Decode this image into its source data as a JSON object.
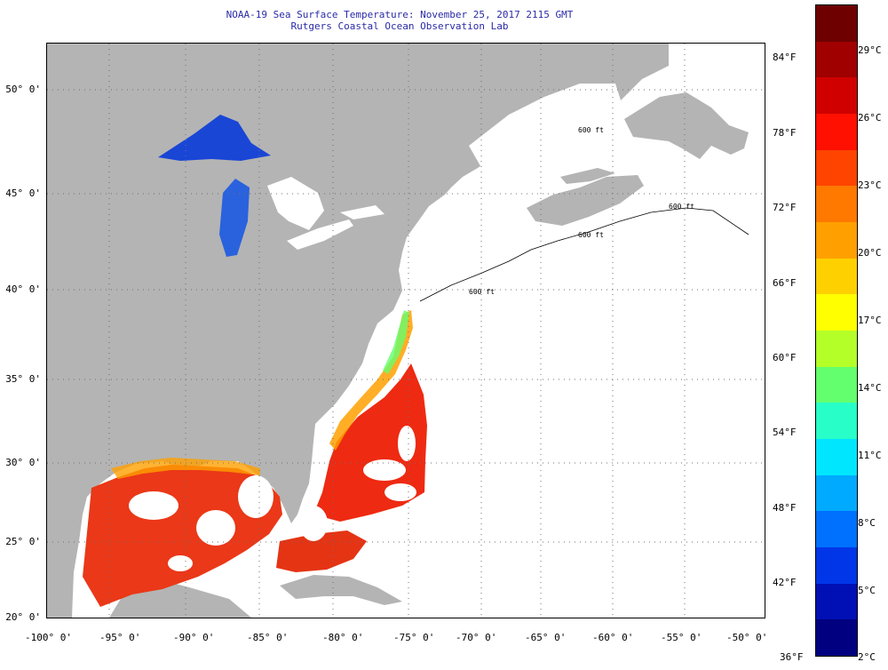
{
  "title": {
    "line1": "NOAA-19 Sea Surface Temperature:  November 25, 2017 2115 GMT",
    "line2": "Rutgers Coastal Ocean Observation Lab"
  },
  "map": {
    "lat_labels": [
      "50° 0'",
      "45° 0'",
      "40° 0'",
      "35° 0'",
      "30° 0'",
      "25° 0'",
      "20° 0'"
    ],
    "lon_labels": [
      "-100° 0'",
      "-95° 0'",
      "-90° 0'",
      "-85° 0'",
      "-80° 0'",
      "-75° 0'",
      "-70° 0'",
      "-65° 0'",
      "-60° 0'",
      "-55° 0'",
      "-50° 0'"
    ],
    "depth_contour_labels": [
      "600 ft",
      "600 ft",
      "600 ft",
      "600 ft"
    ],
    "grid": "dotted",
    "colors": {
      "land": "#b4b4b4",
      "no_data": "#ffffff",
      "warm": "#ee2a12",
      "cold": "#1a46d6"
    }
  },
  "colorbar": {
    "fahrenheit": [
      "84°F",
      "78°F",
      "72°F",
      "66°F",
      "60°F",
      "54°F",
      "48°F",
      "42°F",
      "36°F"
    ],
    "celsius": [
      "29°C",
      "26°C",
      "23°C",
      "20°C",
      "17°C",
      "14°C",
      "11°C",
      "8°C",
      "5°C",
      "2°C"
    ],
    "colors": [
      "#6e0000",
      "#a00000",
      "#d00000",
      "#ff1000",
      "#ff4400",
      "#ff7800",
      "#ffa000",
      "#ffd000",
      "#ffff00",
      "#b4ff28",
      "#64ff6e",
      "#28ffc8",
      "#00e6ff",
      "#00aaff",
      "#0070ff",
      "#0036e8",
      "#0010b4",
      "#000080"
    ]
  }
}
